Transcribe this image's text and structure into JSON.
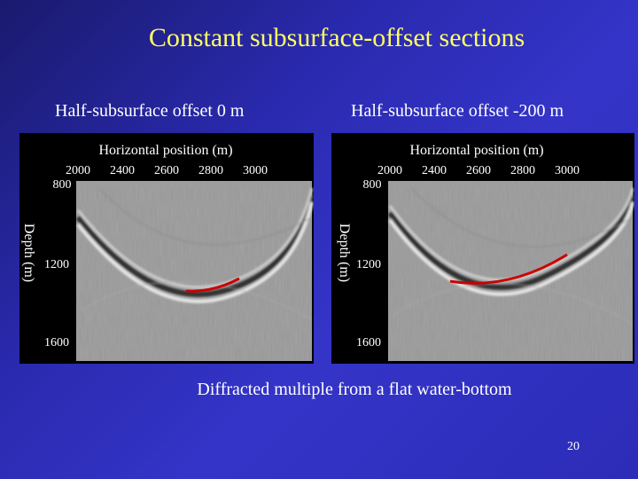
{
  "title": "Constant subsurface-offset sections",
  "panels": [
    {
      "subtitle": "Half-subsurface offset 0 m",
      "xlabel": "Horizontal position (m)",
      "ylabel": "Depth (m)",
      "xticks": [
        "2000",
        "2400",
        "2600",
        "2800",
        "3000"
      ],
      "yticks": [
        "800",
        "1200",
        "1600"
      ]
    },
    {
      "subtitle": "Half-subsurface offset -200 m",
      "xlabel": "Horizontal position (m)",
      "ylabel": "Depth (m)",
      "xticks": [
        "2000",
        "2400",
        "2600",
        "2800",
        "3000"
      ],
      "yticks": [
        "800",
        "1200",
        "1600"
      ]
    }
  ],
  "caption": "Diffracted multiple from a flat water-bottom",
  "page_number": "20",
  "colors": {
    "title": "#ffff66",
    "highlight_curve": "#cc0000",
    "background": "#2a2ab0"
  }
}
